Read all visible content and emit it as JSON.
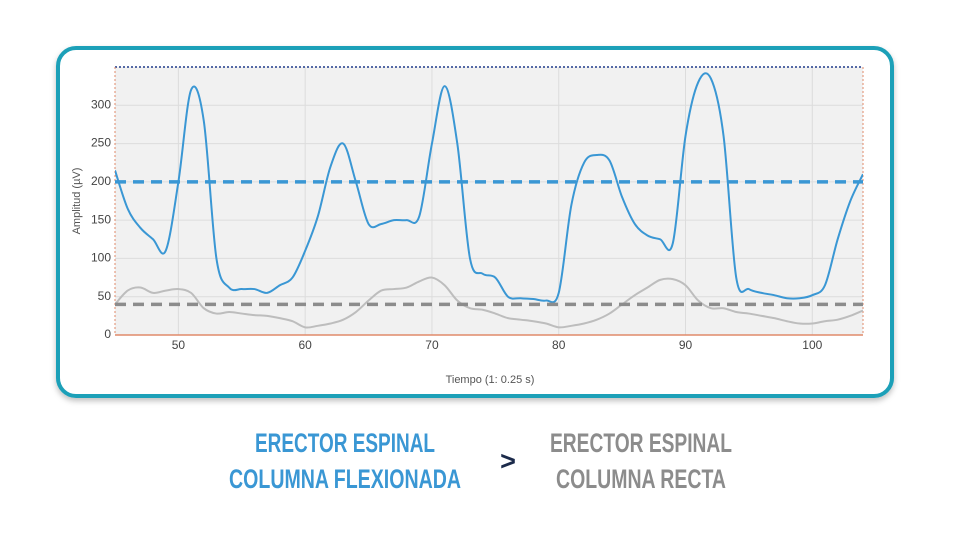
{
  "chart_data": {
    "type": "line",
    "x_label": "Tiempo (1: 0.25 s)",
    "y_label": "Amplitud (µV)",
    "x": [
      45,
      46,
      47,
      48,
      49,
      50,
      51,
      52,
      53,
      54,
      55,
      56,
      57,
      58,
      59,
      60,
      61,
      62,
      63,
      64,
      65,
      66,
      67,
      68,
      69,
      70,
      71,
      72,
      73,
      74,
      75,
      76,
      77,
      78,
      79,
      80,
      81,
      82,
      83,
      84,
      85,
      86,
      87,
      88,
      89,
      90,
      91,
      92,
      93,
      94,
      95,
      96,
      97,
      98,
      99,
      100,
      101,
      102,
      103,
      104
    ],
    "series": [
      {
        "color": "#3a97d4",
        "values": [
          215,
          165,
          140,
          125,
          110,
          200,
          320,
          280,
          100,
          62,
          60,
          60,
          55,
          65,
          75,
          110,
          155,
          220,
          250,
          200,
          145,
          145,
          150,
          150,
          155,
          250,
          325,
          250,
          100,
          80,
          75,
          50,
          48,
          47,
          45,
          55,
          170,
          225,
          235,
          228,
          180,
          145,
          130,
          125,
          120,
          260,
          330,
          335,
          260,
          75,
          60,
          55,
          52,
          48,
          48,
          52,
          65,
          125,
          175,
          210
        ]
      },
      {
        "color": "#bdbdbd",
        "values": [
          40,
          58,
          62,
          55,
          58,
          60,
          55,
          35,
          28,
          30,
          28,
          26,
          25,
          22,
          18,
          10,
          12,
          15,
          20,
          30,
          45,
          58,
          60,
          62,
          70,
          75,
          65,
          45,
          35,
          33,
          28,
          22,
          20,
          18,
          15,
          10,
          12,
          15,
          20,
          28,
          40,
          52,
          62,
          72,
          73,
          65,
          45,
          35,
          35,
          30,
          28,
          25,
          22,
          18,
          15,
          15,
          18,
          20,
          25,
          32
        ]
      }
    ],
    "reference_lines": [
      {
        "value": 200,
        "color": "#3a97d4"
      },
      {
        "value": 40,
        "color": "#8c8c8c"
      }
    ],
    "xlim": [
      45,
      104
    ],
    "xticks": [
      50,
      60,
      70,
      80,
      90,
      100
    ],
    "ylim": [
      0,
      350
    ],
    "yticks": [
      0,
      50,
      100,
      150,
      200,
      250,
      300
    ],
    "grid": true
  },
  "captions": {
    "left": [
      "ERECTOR ESPINAL",
      "COLUMNA FLEXIONADA"
    ],
    "operator": ">",
    "right": [
      "ERECTOR ESPINAL",
      "COLUMNA RECTA"
    ]
  }
}
